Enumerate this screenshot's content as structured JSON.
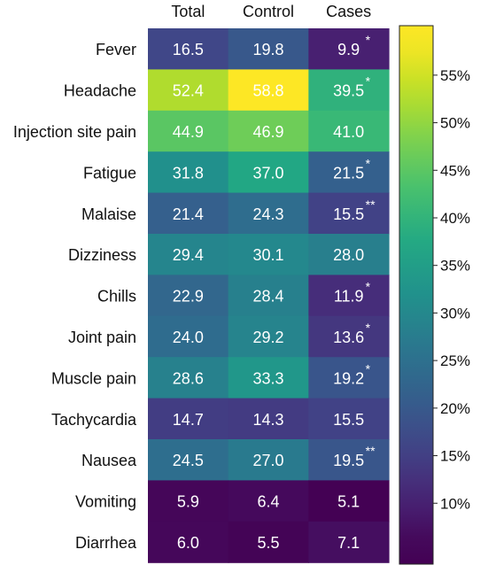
{
  "chart_data": {
    "type": "heatmap",
    "columns": [
      "Total",
      "Control",
      "Cases"
    ],
    "rows": [
      "Fever",
      "Headache",
      "Injection site pain",
      "Fatigue",
      "Malaise",
      "Dizziness",
      "Chills",
      "Joint pain",
      "Muscle pain",
      "Tachycardia",
      "Nausea",
      "Vomiting",
      "Diarrhea"
    ],
    "values": [
      [
        16.5,
        19.8,
        9.9
      ],
      [
        52.4,
        58.8,
        39.5
      ],
      [
        44.9,
        46.9,
        41.0
      ],
      [
        31.8,
        37.0,
        21.5
      ],
      [
        21.4,
        24.3,
        15.5
      ],
      [
        29.4,
        30.1,
        28.0
      ],
      [
        22.9,
        28.4,
        11.9
      ],
      [
        24.0,
        29.2,
        13.6
      ],
      [
        28.6,
        33.3,
        19.2
      ],
      [
        14.7,
        14.3,
        15.5
      ],
      [
        24.5,
        27.0,
        19.5
      ],
      [
        5.9,
        6.4,
        5.1
      ],
      [
        6.0,
        5.5,
        7.1
      ]
    ],
    "significance": [
      [
        "",
        "",
        "*"
      ],
      [
        "",
        "",
        "*"
      ],
      [
        "",
        "",
        ""
      ],
      [
        "",
        "",
        "*"
      ],
      [
        "",
        "",
        "**"
      ],
      [
        "",
        "",
        ""
      ],
      [
        "",
        "",
        "*"
      ],
      [
        "",
        "",
        "*"
      ],
      [
        "",
        "",
        "*"
      ],
      [
        "",
        "",
        ""
      ],
      [
        "",
        "",
        "**"
      ],
      [
        "",
        "",
        ""
      ],
      [
        "",
        "",
        ""
      ]
    ],
    "colorbar": {
      "min": 5.1,
      "max": 58.8,
      "ticks": [
        10,
        15,
        20,
        25,
        30,
        35,
        40,
        45,
        50,
        55
      ],
      "tick_labels": [
        "10%",
        "15%",
        "20%",
        "25%",
        "30%",
        "35%",
        "40%",
        "45%",
        "50%",
        "55%"
      ],
      "colormap": "viridis"
    },
    "value_text_color": "#ffffff"
  }
}
